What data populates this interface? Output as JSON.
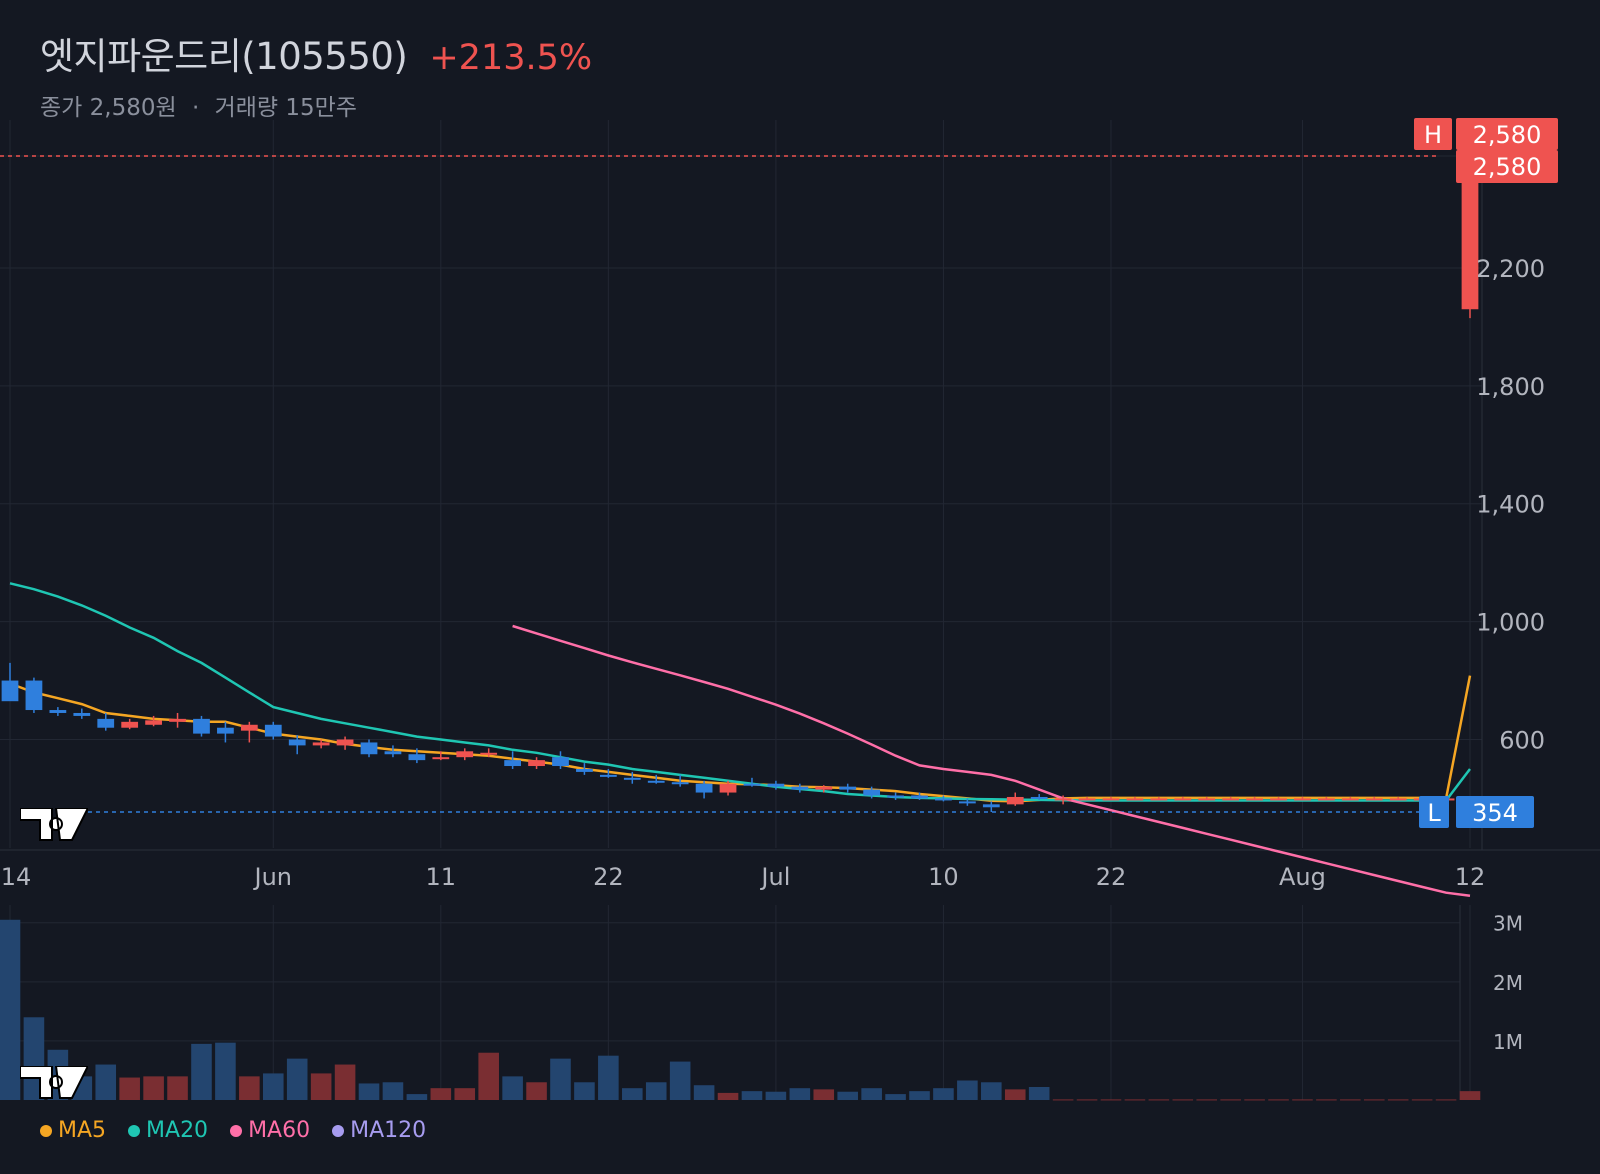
{
  "header": {
    "title": "엣지파운드리(105550)",
    "change": "+213.5%",
    "close_label": "종가 2,580원",
    "sep": "·",
    "volume_label": "거래량 15만주"
  },
  "colors": {
    "background": "#141822",
    "up": "#ef5350",
    "down": "#2f7fdd",
    "ma5": "#f5a623",
    "ma20": "#1fc6b3",
    "ma60": "#ff6fa8",
    "ma120": "#a79cf0",
    "grid": "#222733"
  },
  "markers": {
    "high_tag": "H",
    "high_value": "2,580",
    "last_value": "2,580",
    "low_tag": "L",
    "low_value": "354"
  },
  "chart_data": [
    {
      "type": "candlestick",
      "title": "엣지파운드리(105550)",
      "x_ticks": [
        "14",
        "Jun",
        "11",
        "22",
        "Jul",
        "10",
        "22",
        "Aug",
        "12"
      ],
      "y_ticks": [
        "600",
        "1,000",
        "1,400",
        "1,800",
        "2,200",
        "2,580"
      ],
      "ylim": [
        230,
        2640
      ],
      "grid": true,
      "ohlc": [
        [
          800,
          860,
          740,
          730
        ],
        [
          800,
          810,
          690,
          700
        ],
        [
          700,
          710,
          680,
          690
        ],
        [
          690,
          705,
          670,
          680
        ],
        [
          670,
          690,
          630,
          640
        ],
        [
          640,
          670,
          635,
          660
        ],
        [
          650,
          680,
          645,
          665
        ],
        [
          660,
          690,
          640,
          670
        ],
        [
          670,
          680,
          610,
          620
        ],
        [
          640,
          660,
          590,
          620
        ],
        [
          630,
          660,
          590,
          650
        ],
        [
          650,
          660,
          600,
          610
        ],
        [
          600,
          615,
          550,
          580
        ],
        [
          580,
          600,
          570,
          590
        ],
        [
          580,
          610,
          565,
          600
        ],
        [
          590,
          600,
          540,
          550
        ],
        [
          560,
          580,
          540,
          550
        ],
        [
          550,
          570,
          520,
          530
        ],
        [
          540,
          560,
          530,
          540
        ],
        [
          540,
          570,
          530,
          560
        ],
        [
          550,
          570,
          540,
          555
        ],
        [
          530,
          560,
          500,
          510
        ],
        [
          510,
          540,
          500,
          530
        ],
        [
          540,
          560,
          500,
          510
        ],
        [
          500,
          520,
          480,
          490
        ],
        [
          480,
          500,
          470,
          475
        ],
        [
          470,
          490,
          450,
          465
        ],
        [
          460,
          480,
          450,
          455
        ],
        [
          455,
          480,
          440,
          450
        ],
        [
          450,
          460,
          400,
          420
        ],
        [
          420,
          460,
          410,
          450
        ],
        [
          450,
          470,
          440,
          445
        ],
        [
          450,
          460,
          430,
          440
        ],
        [
          440,
          450,
          420,
          430
        ],
        [
          430,
          445,
          420,
          440
        ],
        [
          440,
          450,
          420,
          430
        ],
        [
          430,
          440,
          400,
          410
        ],
        [
          410,
          420,
          395,
          405
        ],
        [
          410,
          420,
          395,
          400
        ],
        [
          400,
          410,
          390,
          395
        ],
        [
          390,
          400,
          375,
          385
        ],
        [
          380,
          390,
          354,
          370
        ],
        [
          380,
          420,
          375,
          405
        ],
        [
          405,
          415,
          395,
          400
        ],
        [
          395,
          410,
          380,
          400
        ],
        [
          400,
          405,
          395,
          400
        ],
        [
          400,
          405,
          395,
          400
        ],
        [
          400,
          405,
          395,
          400
        ],
        [
          400,
          405,
          395,
          400
        ],
        [
          400,
          405,
          395,
          400
        ],
        [
          400,
          405,
          395,
          400
        ],
        [
          400,
          405,
          395,
          400
        ],
        [
          400,
          405,
          395,
          400
        ],
        [
          400,
          405,
          395,
          400
        ],
        [
          400,
          405,
          395,
          400
        ],
        [
          400,
          405,
          395,
          400
        ],
        [
          400,
          405,
          395,
          400
        ],
        [
          400,
          405,
          395,
          400
        ],
        [
          400,
          405,
          395,
          400
        ],
        [
          400,
          405,
          395,
          400
        ],
        [
          400,
          405,
          395,
          400
        ],
        [
          2060,
          2580,
          2030,
          2580
        ]
      ],
      "series": [
        {
          "name": "MA5",
          "values": [
            790,
            760,
            740,
            720,
            690,
            680,
            670,
            665,
            660,
            660,
            640,
            620,
            610,
            600,
            585,
            575,
            565,
            560,
            555,
            550,
            545,
            535,
            525,
            515,
            500,
            490,
            480,
            470,
            460,
            455,
            450,
            448,
            445,
            440,
            438,
            435,
            430,
            425,
            415,
            408,
            400,
            392,
            390,
            395,
            400,
            402,
            402,
            402,
            402,
            402,
            402,
            402,
            402,
            402,
            402,
            402,
            402,
            402,
            402,
            402,
            400,
            817
          ]
        },
        {
          "name": "MA20",
          "values": [
            1130,
            1110,
            1085,
            1055,
            1020,
            980,
            945,
            900,
            860,
            810,
            760,
            710,
            690,
            670,
            655,
            640,
            625,
            610,
            600,
            590,
            580,
            565,
            555,
            540,
            525,
            515,
            500,
            490,
            480,
            470,
            460,
            450,
            440,
            432,
            425,
            415,
            410,
            405,
            402,
            400,
            398,
            397,
            396,
            395,
            394,
            393,
            393,
            393,
            393,
            393,
            393,
            393,
            393,
            393,
            393,
            393,
            393,
            393,
            393,
            393,
            393,
            500
          ]
        },
        {
          "name": "MA60",
          "values": [
            null,
            null,
            null,
            null,
            null,
            null,
            null,
            null,
            null,
            null,
            null,
            null,
            null,
            null,
            null,
            null,
            null,
            null,
            null,
            null,
            null,
            985,
            960,
            935,
            910,
            885,
            862,
            840,
            818,
            795,
            772,
            745,
            718,
            688,
            655,
            620,
            583,
            545,
            512,
            500,
            490,
            480,
            460,
            430,
            400,
            380,
            360,
            340,
            320,
            300,
            280,
            260,
            240,
            220,
            200,
            180,
            160,
            140,
            120,
            100,
            80,
            70
          ]
        },
        {
          "name": "MA120",
          "values": []
        }
      ],
      "volume": {
        "y_ticks": [
          "1M",
          "2M",
          "3M"
        ],
        "values": [
          3.05,
          1.4,
          0.85,
          0.4,
          0.6,
          0.38,
          0.4,
          0.4,
          0.95,
          0.97,
          0.4,
          0.45,
          0.7,
          0.45,
          0.6,
          0.28,
          0.3,
          0.1,
          0.2,
          0.2,
          0.8,
          0.4,
          0.3,
          0.7,
          0.3,
          0.75,
          0.2,
          0.3,
          0.65,
          0.25,
          0.12,
          0.15,
          0.14,
          0.2,
          0.18,
          0.14,
          0.2,
          0.1,
          0.15,
          0.2,
          0.33,
          0.3,
          0.18,
          0.22,
          0.01,
          0.01,
          0.01,
          0.01,
          0.01,
          0.01,
          0.01,
          0.01,
          0.01,
          0.01,
          0.01,
          0.01,
          0.01,
          0.01,
          0.01,
          0.01,
          0.01,
          0.15
        ]
      }
    }
  ],
  "legend": [
    {
      "label": "MA5",
      "color": "#f5a623"
    },
    {
      "label": "MA20",
      "color": "#1fc6b3"
    },
    {
      "label": "MA60",
      "color": "#ff6fa8"
    },
    {
      "label": "MA120",
      "color": "#a79cf0"
    }
  ]
}
